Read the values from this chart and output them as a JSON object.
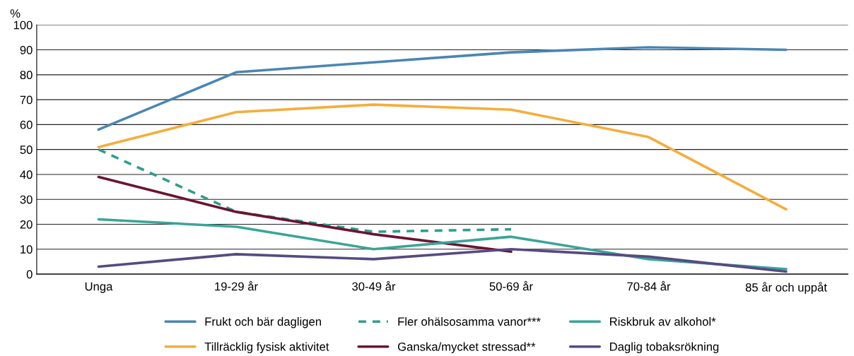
{
  "chart_data": {
    "type": "line",
    "ylabel": "%",
    "categories": [
      "Unga",
      "19-29 år",
      "30-49 år",
      "50-69 år",
      "70-84 år",
      "85 år och uppåt"
    ],
    "ylim": [
      0,
      100
    ],
    "yticks": [
      0,
      10,
      20,
      30,
      40,
      50,
      60,
      70,
      80,
      90,
      100
    ],
    "grid": "y",
    "legend": "bottom",
    "marker": "none",
    "series": [
      {
        "name": "Frukt och bär dagligen",
        "color": "#4a86b4",
        "values": [
          58,
          81,
          85,
          89,
          91,
          90
        ]
      },
      {
        "name": "Tillräcklig fysisk aktivitet",
        "color": "#f5ad3c",
        "values": [
          51,
          65,
          68,
          66,
          55,
          26
        ]
      },
      {
        "name": "Fler ohälsosamma vanor***",
        "color": "#2f9e8a",
        "line_style": "dashed",
        "values": [
          50,
          25,
          17,
          18,
          null,
          null
        ]
      },
      {
        "name": "Ganska/mycket stressad**",
        "color": "#6b1434",
        "values": [
          39,
          25,
          16,
          9,
          null,
          null
        ]
      },
      {
        "name": "Riskbruk av alkohol*",
        "color": "#3aa597",
        "values": [
          22,
          19,
          10,
          15,
          6,
          2
        ]
      },
      {
        "name": "Daglig tobaksrökning",
        "color": "#574a82",
        "values": [
          3,
          8,
          6,
          10,
          7,
          1
        ]
      }
    ]
  }
}
